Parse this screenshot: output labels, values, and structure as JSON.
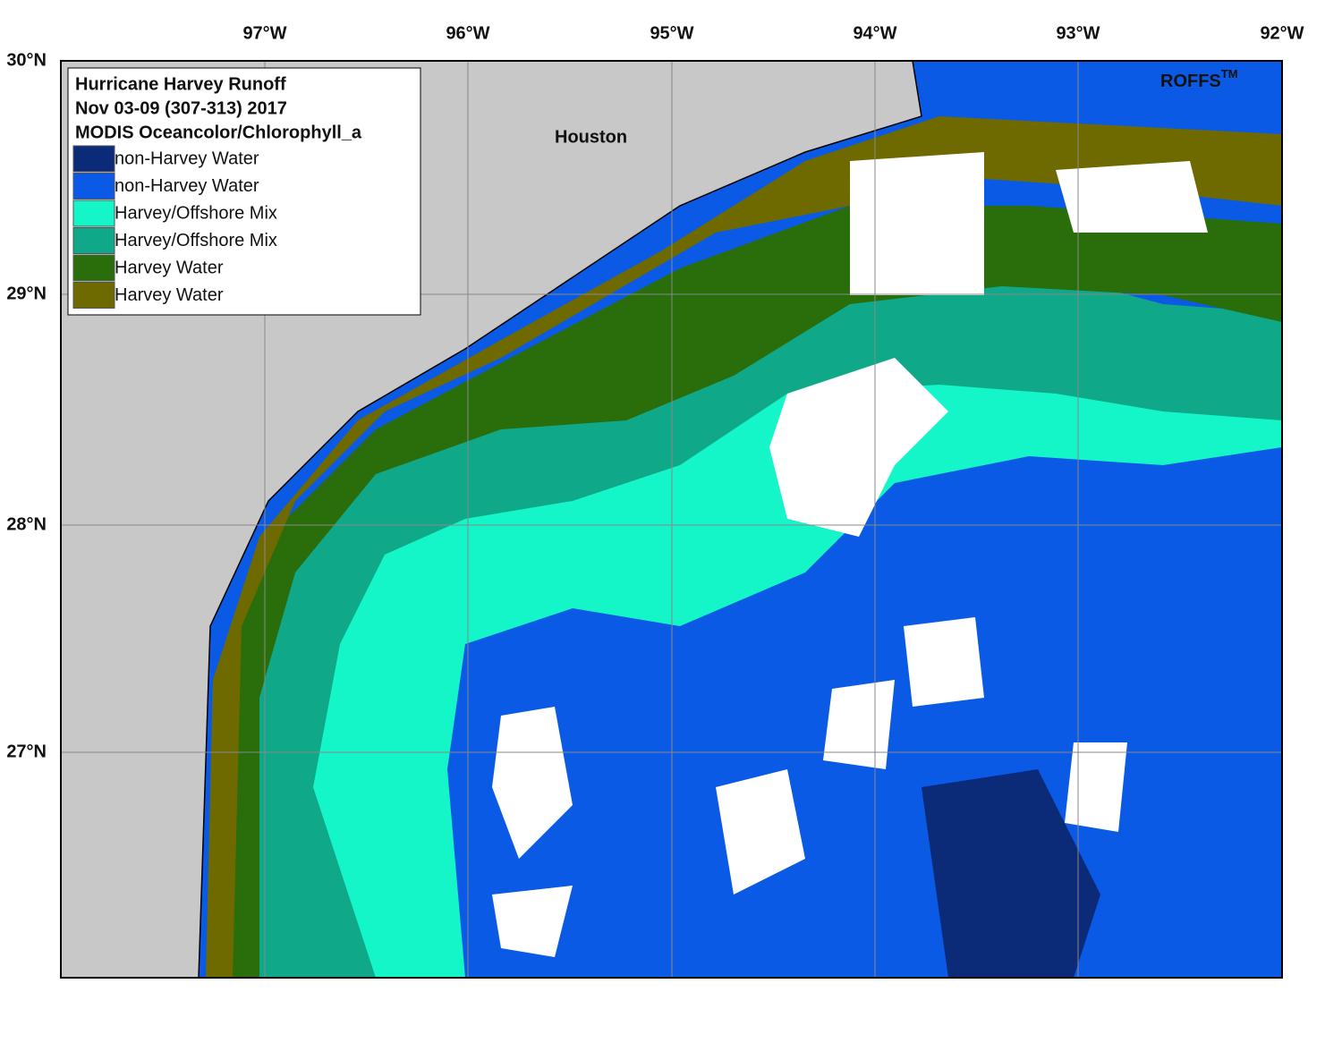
{
  "map": {
    "lon_labels": [
      "97°W",
      "96°W",
      "95°W",
      "94°W",
      "93°W",
      "92°W"
    ],
    "lat_labels": [
      "30°N",
      "29°N",
      "28°N",
      "27°N"
    ],
    "place_label": "Houston",
    "brand": "ROFFS",
    "brand_mark": "TM"
  },
  "legend": {
    "title_lines": [
      "Hurricane Harvey Runoff",
      "Nov 03-09 (307-313) 2017",
      "MODIS Oceancolor/Chlorophyll_a"
    ],
    "items": [
      {
        "label": "non-Harvey Water",
        "color": "#0b2a78"
      },
      {
        "label": "non-Harvey Water",
        "color": "#0a5ae6"
      },
      {
        "label": "Harvey/Offshore Mix",
        "color": "#14f5c8"
      },
      {
        "label": "Harvey/Offshore Mix",
        "color": "#0fa98a"
      },
      {
        "label": "Harvey Water",
        "color": "#2a6e0c"
      },
      {
        "label": "Harvey Water",
        "color": "#6e6a00"
      }
    ]
  }
}
